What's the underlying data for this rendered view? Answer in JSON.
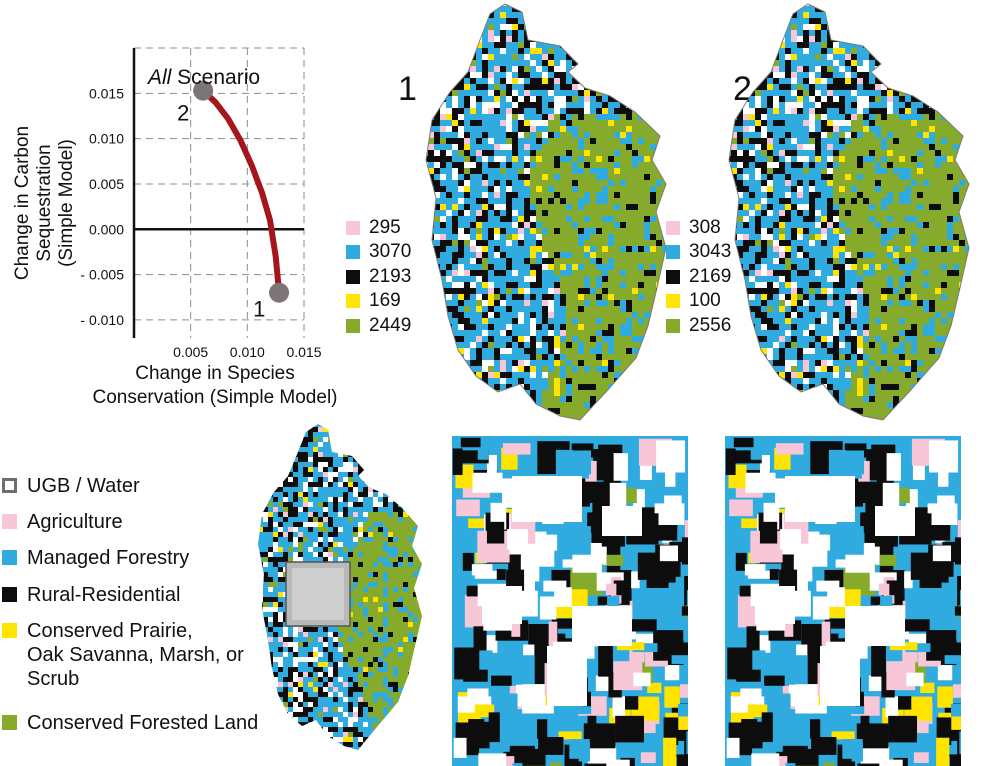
{
  "chart_data": {
    "type": "line",
    "title": "All Scenario",
    "title_italic_part": "All",
    "title_rest": " Scenario",
    "xlabel": "Change in Species Conservation (Simple Model)",
    "xlabel_line1": "Change in Species",
    "xlabel_line2": "Conservation (Simple Model)",
    "ylabel": "Change in Carbon Sequestration (Simple Model)",
    "ylabel_line1": "Change in Carbon Sequestration",
    "ylabel_line2": "(Simple Model)",
    "xlim": [
      0.0,
      0.015
    ],
    "ylim": [
      -0.012,
      0.02
    ],
    "x_ticks": [
      "0.005",
      "0.010",
      "0.015"
    ],
    "x_tick_values": [
      0.005,
      0.01,
      0.015
    ],
    "y_ticks": [
      "0.015",
      "0.010",
      "0.005",
      "0.000",
      "- 0.005",
      "- 0.010"
    ],
    "y_tick_values": [
      0.015,
      0.01,
      0.005,
      0.0,
      -0.005,
      -0.01
    ],
    "grid": "dashed",
    "series": [
      {
        "color": "#a3161b",
        "x": [
          0.0061,
          0.0072,
          0.0083,
          0.0094,
          0.0104,
          0.0113,
          0.012,
          0.0125,
          0.0128
        ],
        "y": [
          0.0153,
          0.014,
          0.0122,
          0.0098,
          0.007,
          0.004,
          0.001,
          -0.003,
          -0.007
        ]
      }
    ],
    "points": [
      {
        "label": "2",
        "x": 0.0061,
        "y": 0.0153
      },
      {
        "label": "1",
        "x": 0.0128,
        "y": -0.007
      }
    ]
  },
  "maps": {
    "map1_label": "1",
    "map2_label": "2",
    "map1_counts": [
      {
        "value": "295",
        "color": "#f7c6d7"
      },
      {
        "value": "3070",
        "color": "#30abe0"
      },
      {
        "value": "2193",
        "color": "#0d0d0d"
      },
      {
        "value": "169",
        "color": "#ffe400"
      },
      {
        "value": "2449",
        "color": "#86aa2c"
      }
    ],
    "map2_counts": [
      {
        "value": "308",
        "color": "#f7c6d7"
      },
      {
        "value": "3043",
        "color": "#30abe0"
      },
      {
        "value": "2169",
        "color": "#0d0d0d"
      },
      {
        "value": "100",
        "color": "#ffe400"
      },
      {
        "value": "2556",
        "color": "#86aa2c"
      }
    ]
  },
  "legend": [
    {
      "label": "UGB / Water",
      "color": "#ffffff",
      "outline": true
    },
    {
      "label": "Agriculture",
      "color": "#f7c6d7"
    },
    {
      "label": "Managed Forestry",
      "color": "#30abe0"
    },
    {
      "label": "Rural-Residential",
      "color": "#0d0d0d"
    },
    {
      "label": "Conserved Prairie,\nOak Savanna, Marsh, or\nScrub",
      "color": "#ffe400"
    },
    {
      "label": "Conserved Forested Land",
      "color": "#86aa2c"
    }
  ],
  "colors": {
    "ugb": "#ffffff",
    "agriculture": "#f7c6d7",
    "forestry": "#30abe0",
    "residential": "#0d0d0d",
    "prairie": "#ffe400",
    "conserved_forest": "#86aa2c",
    "boundary": "#8a8a8a"
  }
}
